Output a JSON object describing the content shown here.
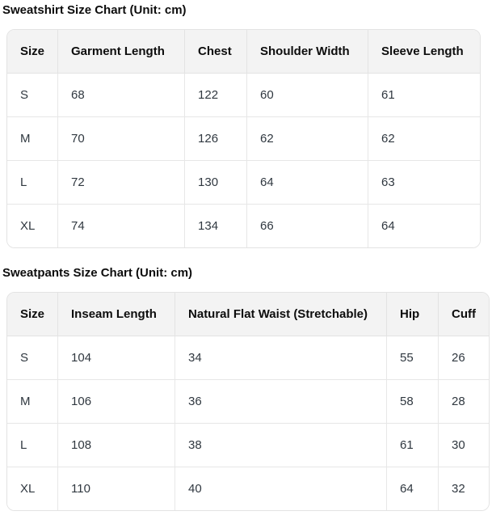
{
  "colors": {
    "header_bg": "#f3f3f3",
    "border": "#e3e3e3",
    "title_text": "#0d0d0d",
    "body_text": "#303840"
  },
  "tables": [
    {
      "title": "Sweatshirt Size Chart (Unit: cm)",
      "columns": [
        "Size",
        "Garment Length",
        "Chest",
        "Shoulder Width",
        "Sleeve Length"
      ],
      "rows": [
        [
          "S",
          "68",
          "122",
          "60",
          "61"
        ],
        [
          "M",
          "70",
          "126",
          "62",
          "62"
        ],
        [
          "L",
          "72",
          "130",
          "64",
          "63"
        ],
        [
          "XL",
          "74",
          "134",
          "66",
          "64"
        ]
      ]
    },
    {
      "title": "Sweatpants Size Chart (Unit: cm)",
      "columns": [
        "Size",
        "Inseam Length",
        "Natural Flat Waist (Stretchable)",
        "Hip",
        "Cuff"
      ],
      "rows": [
        [
          "S",
          "104",
          "34",
          "55",
          "26"
        ],
        [
          "M",
          "106",
          "36",
          "58",
          "28"
        ],
        [
          "L",
          "108",
          "38",
          "61",
          "30"
        ],
        [
          "XL",
          "110",
          "40",
          "64",
          "32"
        ]
      ]
    }
  ]
}
